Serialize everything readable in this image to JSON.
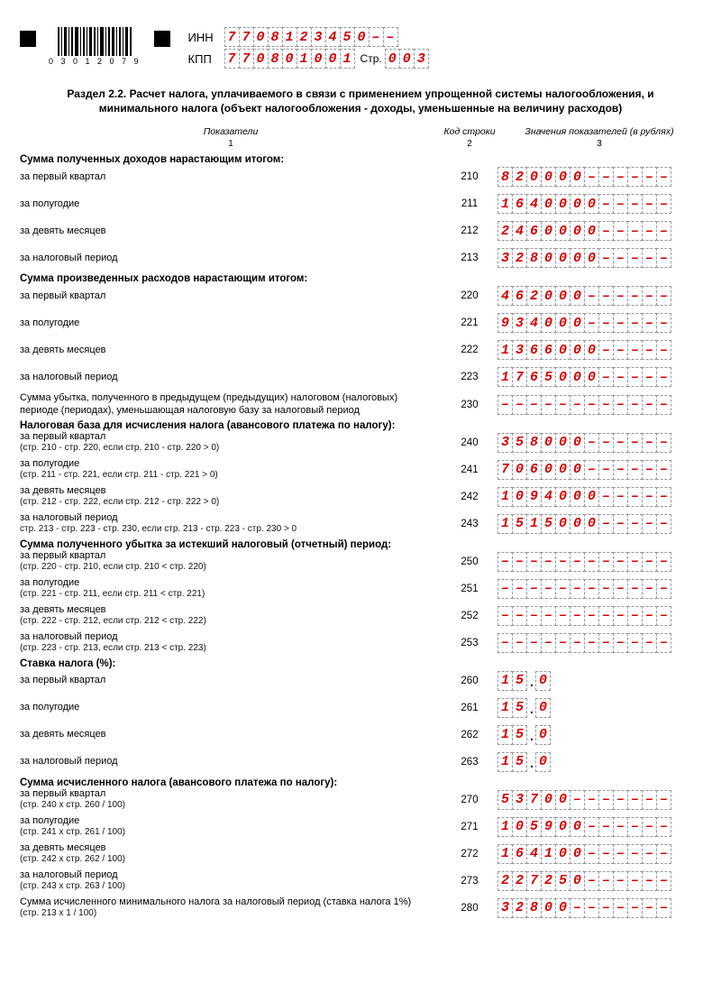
{
  "header": {
    "inn_label": "ИНН",
    "kpp_label": "КПП",
    "page_label": "Стр.",
    "inn": [
      "7",
      "7",
      "0",
      "8",
      "1",
      "2",
      "3",
      "4",
      "5",
      "0",
      "–",
      "–"
    ],
    "kpp": [
      "7",
      "7",
      "0",
      "8",
      "0",
      "1",
      "0",
      "0",
      "1"
    ],
    "page": [
      "0",
      "0",
      "3"
    ],
    "barcode_number": "0 3 0 1 2 0 7 9"
  },
  "section_title": "Раздел 2.2. Расчет налога, уплачиваемого в связи с применением упрощенной системы налогообложения, и минимального налога (объект налогообложения - доходы, уменьшенные на величину расходов)",
  "column_headers": {
    "c1": "Показатели",
    "c2": "Код строки",
    "c3": "Значения показателей (в рублях)",
    "n1": "1",
    "n2": "2",
    "n3": "3"
  },
  "cell_count": 12,
  "groups": [
    {
      "title": "Сумма полученных доходов нарастающим итогом:",
      "rows": [
        {
          "label": "за первый квартал",
          "code": "210",
          "val": [
            "8",
            "2",
            "0",
            "0",
            "0",
            "0",
            "–",
            "–",
            "–",
            "–",
            "–",
            "–"
          ]
        },
        {
          "label": "за полугодие",
          "code": "211",
          "val": [
            "1",
            "6",
            "4",
            "0",
            "0",
            "0",
            "0",
            "–",
            "–",
            "–",
            "–",
            "–"
          ]
        },
        {
          "label": "за девять месяцев",
          "code": "212",
          "val": [
            "2",
            "4",
            "6",
            "0",
            "0",
            "0",
            "0",
            "–",
            "–",
            "–",
            "–",
            "–"
          ]
        },
        {
          "label": "за налоговый период",
          "code": "213",
          "val": [
            "3",
            "2",
            "8",
            "0",
            "0",
            "0",
            "0",
            "–",
            "–",
            "–",
            "–",
            "–"
          ]
        }
      ]
    },
    {
      "title": "Сумма произведенных расходов нарастающим итогом:",
      "rows": [
        {
          "label": "за первый квартал",
          "code": "220",
          "val": [
            "4",
            "6",
            "2",
            "0",
            "0",
            "0",
            "–",
            "–",
            "–",
            "–",
            "–",
            "–"
          ]
        },
        {
          "label": "за полугодие",
          "code": "221",
          "val": [
            "9",
            "3",
            "4",
            "0",
            "0",
            "0",
            "–",
            "–",
            "–",
            "–",
            "–",
            "–"
          ]
        },
        {
          "label": "за девять месяцев",
          "code": "222",
          "val": [
            "1",
            "3",
            "6",
            "6",
            "0",
            "0",
            "0",
            "–",
            "–",
            "–",
            "–",
            "–"
          ]
        },
        {
          "label": "за налоговый период",
          "code": "223",
          "val": [
            "1",
            "7",
            "6",
            "5",
            "0",
            "0",
            "0",
            "–",
            "–",
            "–",
            "–",
            "–"
          ]
        }
      ]
    },
    {
      "title": "",
      "rows": [
        {
          "label": "Сумма убытка, полученного в предыдущем (предыдущих) налоговом (налоговых) периоде (периодах), уменьшающая налоговую базу за налоговый период",
          "code": "230",
          "val": [
            "–",
            "–",
            "–",
            "–",
            "–",
            "–",
            "–",
            "–",
            "–",
            "–",
            "–",
            "–"
          ]
        }
      ]
    },
    {
      "title": "Налоговая база для исчисления налога (авансового платежа по налогу):",
      "rows": [
        {
          "label": "за первый квартал",
          "sub": "(стр. 210 - стр. 220, если стр. 210 - стр. 220 > 0)",
          "code": "240",
          "val": [
            "3",
            "5",
            "8",
            "0",
            "0",
            "0",
            "–",
            "–",
            "–",
            "–",
            "–",
            "–"
          ]
        },
        {
          "label": "за полугодие",
          "sub": "(стр. 211 - стр. 221, если стр. 211 - стр. 221 > 0)",
          "code": "241",
          "val": [
            "7",
            "0",
            "6",
            "0",
            "0",
            "0",
            "–",
            "–",
            "–",
            "–",
            "–",
            "–"
          ]
        },
        {
          "label": "за девять месяцев",
          "sub": "(стр. 212 - стр. 222, если стр. 212 - стр. 222 > 0)",
          "code": "242",
          "val": [
            "1",
            "0",
            "9",
            "4",
            "0",
            "0",
            "0",
            "–",
            "–",
            "–",
            "–",
            "–"
          ]
        },
        {
          "label": "за налоговый период",
          "sub": "стр. 213 - стр. 223 - стр. 230, если стр. 213 - стр. 223 - стр. 230 > 0",
          "code": "243",
          "val": [
            "1",
            "5",
            "1",
            "5",
            "0",
            "0",
            "0",
            "–",
            "–",
            "–",
            "–",
            "–"
          ]
        }
      ]
    },
    {
      "title": "Сумма полученного убытка за истекший налоговый (отчетный) период:",
      "rows": [
        {
          "label": "за первый квартал",
          "sub": "(стр. 220 - стр. 210, если стр. 210 < стр. 220)",
          "code": "250",
          "val": [
            "–",
            "–",
            "–",
            "–",
            "–",
            "–",
            "–",
            "–",
            "–",
            "–",
            "–",
            "–"
          ]
        },
        {
          "label": "за полугодие",
          "sub": "(стр. 221 - стр. 211, если стр. 211 < стр. 221)",
          "code": "251",
          "val": [
            "–",
            "–",
            "–",
            "–",
            "–",
            "–",
            "–",
            "–",
            "–",
            "–",
            "–",
            "–"
          ]
        },
        {
          "label": "за девять месяцев",
          "sub": "(стр. 222 - стр. 212, если стр. 212 < стр. 222)",
          "code": "252",
          "val": [
            "–",
            "–",
            "–",
            "–",
            "–",
            "–",
            "–",
            "–",
            "–",
            "–",
            "–",
            "–"
          ]
        },
        {
          "label": "за налоговый период",
          "sub": "(стр. 223 - стр. 213, если стр. 213 < стр. 223)",
          "code": "253",
          "val": [
            "–",
            "–",
            "–",
            "–",
            "–",
            "–",
            "–",
            "–",
            "–",
            "–",
            "–",
            "–"
          ]
        }
      ]
    },
    {
      "title": "Ставка налога (%):",
      "rate": true,
      "rows": [
        {
          "label": "за первый квартал",
          "code": "260",
          "rate": [
            "1",
            "5",
            "0"
          ]
        },
        {
          "label": "за полугодие",
          "code": "261",
          "rate": [
            "1",
            "5",
            "0"
          ]
        },
        {
          "label": "за девять месяцев",
          "code": "262",
          "rate": [
            "1",
            "5",
            "0"
          ]
        },
        {
          "label": "за налоговый период",
          "code": "263",
          "rate": [
            "1",
            "5",
            "0"
          ]
        }
      ]
    },
    {
      "title": "Сумма исчисленного налога (авансового платежа по налогу):",
      "rows": [
        {
          "label": "за первый квартал",
          "sub": "(стр. 240 х стр. 260 / 100)",
          "code": "270",
          "val": [
            "5",
            "3",
            "7",
            "0",
            "0",
            "–",
            "–",
            "–",
            "–",
            "–",
            "–",
            "–"
          ]
        },
        {
          "label": "за полугодие",
          "sub": "(стр. 241 х стр. 261 / 100)",
          "code": "271",
          "val": [
            "1",
            "0",
            "5",
            "9",
            "0",
            "0",
            "–",
            "–",
            "–",
            "–",
            "–",
            "–"
          ]
        },
        {
          "label": "за девять месяцев",
          "sub": "(стр. 242 х стр. 262 / 100)",
          "code": "272",
          "val": [
            "1",
            "6",
            "4",
            "1",
            "0",
            "0",
            "–",
            "–",
            "–",
            "–",
            "–",
            "–"
          ]
        },
        {
          "label": "за налоговый период",
          "sub": "(стр. 243 х стр. 263 / 100)",
          "code": "273",
          "val": [
            "2",
            "2",
            "7",
            "2",
            "5",
            "0",
            "–",
            "–",
            "–",
            "–",
            "–",
            "–"
          ]
        },
        {
          "label": "Сумма исчисленного минимального налога за налоговый период (ставка налога 1%)",
          "sub": "(стр. 213 х 1 / 100)",
          "code": "280",
          "val": [
            "3",
            "2",
            "8",
            "0",
            "0",
            "–",
            "–",
            "–",
            "–",
            "–",
            "–",
            "–"
          ]
        }
      ]
    }
  ],
  "colors": {
    "value_text": "#d20000",
    "cell_border": "#999999"
  }
}
